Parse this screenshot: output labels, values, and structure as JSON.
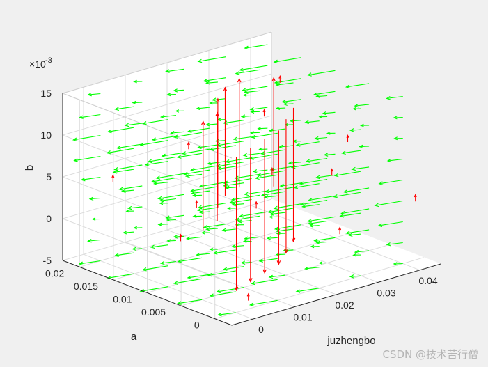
{
  "chart_data": {
    "type": "quiver3",
    "xlabel": "juzhengbo",
    "ylabel": "a",
    "zlabel": "b",
    "x_ticks": [
      "0",
      "0.01",
      "0.02",
      "0.03",
      "0.04"
    ],
    "y_ticks": [
      "0",
      "0.005",
      "0.01",
      "0.015",
      "0.02"
    ],
    "z_ticks": [
      "-5",
      "0",
      "5",
      "10",
      "15"
    ],
    "z_exponent_label": "×10",
    "z_exponent": "-3",
    "xlim": [
      -0.005,
      0.045
    ],
    "ylim": [
      -0.0025,
      0.0225
    ],
    "zlim": [
      -0.005,
      0.015
    ],
    "grid": true,
    "series": [
      {
        "color": "#00ff00",
        "description": "arrows pointing mostly in -x direction"
      },
      {
        "color": "#ff0000",
        "description": "arrows pointing vertically (+z or -z)"
      }
    ]
  },
  "watermark": "CSDN @技术苦行僧",
  "colors": {
    "background": "#f0f0f0",
    "axes_background": "#ffffff",
    "green_arrows": "#00ff00",
    "red_arrows": "#ff0000"
  }
}
